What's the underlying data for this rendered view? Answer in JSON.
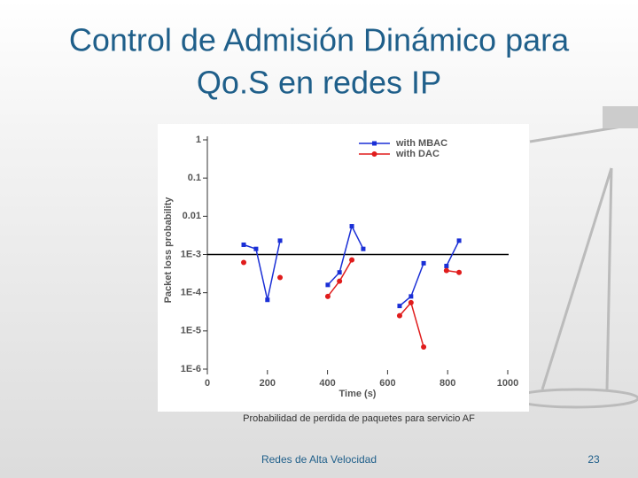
{
  "title_lines": [
    "Control de Admisión Dinámico para",
    "Qo.S en redes IP"
  ],
  "caption": "Probabilidad de perdida de paquetes para servicio AF",
  "footer": "Redes de Alta Velocidad",
  "page_number": "23",
  "chart_data": {
    "type": "line",
    "xlabel": "Time (s)",
    "ylabel": "Packet loss probability",
    "xlim": [
      0,
      1000
    ],
    "xticks": [
      0,
      200,
      400,
      600,
      800,
      1000
    ],
    "ylim": [
      1e-06,
      1
    ],
    "yticks": [
      1,
      0.1,
      0.01,
      {
        "value": 0.001,
        "label": "1E-3"
      },
      {
        "value": 0.0001,
        "label": "1E-4"
      },
      {
        "value": 1e-05,
        "label": "1E-5"
      },
      {
        "value": 1e-06,
        "label": "1E-6"
      }
    ],
    "log_y": true,
    "hline": 0.001,
    "legend": "upper right",
    "series": [
      {
        "name": "with MBAC",
        "color": "#1a2fd6",
        "marker": "square",
        "x": [
          121,
          162,
          200,
          242,
          null,
          401,
          440,
          481,
          519,
          null,
          640,
          678,
          720,
          null,
          796,
          838
        ],
        "values": [
          0.0018,
          0.0014,
          6.5e-05,
          0.0023,
          null,
          0.00016,
          0.00034,
          0.0055,
          0.0014,
          null,
          4.5e-05,
          8e-05,
          0.00059,
          null,
          0.0005,
          0.0023
        ]
      },
      {
        "name": "with DAC",
        "color": "#e01c1c",
        "marker": "circle",
        "x": [
          121,
          null,
          242,
          null,
          401,
          440,
          481,
          null,
          640,
          678,
          720,
          null,
          796,
          838
        ],
        "values": [
          0.00062,
          null,
          0.00025,
          null,
          8e-05,
          0.0002,
          0.00072,
          null,
          2.5e-05,
          5.5e-05,
          3.8e-06,
          null,
          0.00038,
          0.00034
        ]
      }
    ]
  }
}
